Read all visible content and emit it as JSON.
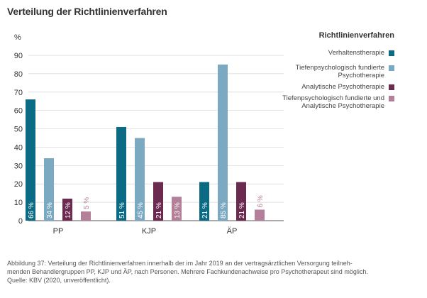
{
  "title": "Verteilung der Richtlinienverfahren",
  "chart_data": {
    "type": "bar",
    "ylabel": "%",
    "ylim": [
      0,
      90
    ],
    "yticks": [
      0,
      10,
      20,
      30,
      40,
      50,
      60,
      70,
      80,
      90
    ],
    "grid": true,
    "legend_position": "right",
    "legend_title": "Richtlinienverfahren",
    "categories": [
      "PP",
      "KJP",
      "ÄP"
    ],
    "series": [
      {
        "name": "Verhaltenstherapie",
        "color": "#0b6a84",
        "values": [
          66,
          51,
          21
        ],
        "labels": [
          "66 %",
          "51 %",
          "21 %"
        ]
      },
      {
        "name": "Tiefenpsychologisch fundierte Psychotherapie",
        "color": "#7ba9c2",
        "values": [
          34,
          45,
          85
        ],
        "labels": [
          "34 %",
          "45 %",
          "85 %"
        ]
      },
      {
        "name": "Analytische Psychotherapie",
        "color": "#6b2a4f",
        "values": [
          12,
          21,
          21
        ],
        "labels": [
          "12 %",
          "21 %",
          "21 %"
        ]
      },
      {
        "name": "Tiefenpsychologisch fundierte und Analytische Psychotherapie",
        "color": "#b47f98",
        "values": [
          5,
          13,
          6
        ],
        "labels": [
          "5 %",
          "13 %",
          "6 %"
        ]
      }
    ]
  },
  "caption": {
    "line1": "Abbildung 37: Verteilung der Richtlinienverfahren innerhalb der im Jahr 2019 an der vertragsärztlichen Versorgung teilneh-",
    "line2": "menden Behandlergruppen PP, KJP und ÄP, nach Personen. Mehrere Fachkundenachweise pro Psychotherapeut sind möglich.",
    "line3": "Quelle: KBV (2020, unveröffentlicht)."
  }
}
